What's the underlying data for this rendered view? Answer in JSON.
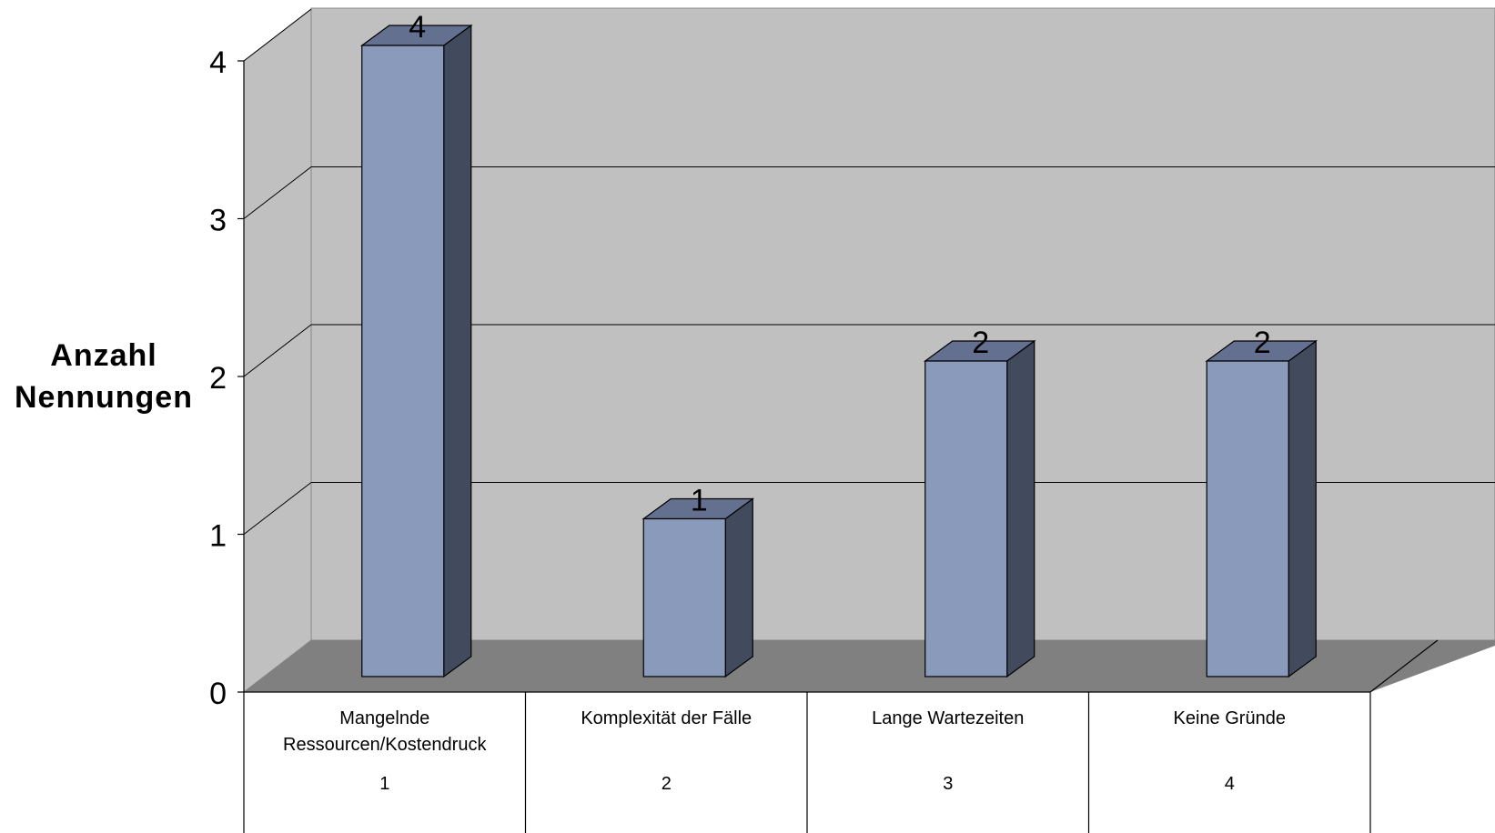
{
  "chart_data": {
    "type": "bar",
    "style": "3d",
    "ylabel": "Anzahl Nennungen",
    "xlabel": "",
    "title": "",
    "ylim": [
      0,
      4
    ],
    "yticks": [
      "0",
      "1",
      "2",
      "3",
      "4"
    ],
    "grid": true,
    "categories": [
      {
        "label_line1": "Mangelnde",
        "label_line2": "Ressourcen/Kostendruck",
        "number": "1",
        "value": 4
      },
      {
        "label_line1": "Komplexität der Fälle",
        "label_line2": "",
        "number": "2",
        "value": 1
      },
      {
        "label_line1": "Lange Wartezeiten",
        "label_line2": "",
        "number": "3",
        "value": 2
      },
      {
        "label_line1": "Keine Gründe",
        "label_line2": "",
        "number": "4",
        "value": 2
      }
    ],
    "data_labels": [
      "4",
      "1",
      "2",
      "2"
    ],
    "colors": {
      "bar_front": "#8a9aba",
      "bar_top": "#647090",
      "bar_side": "#424b5e",
      "back_wall": "#c0c0c0",
      "side_wall": "#c0c0c0",
      "floor": "#808080"
    }
  }
}
